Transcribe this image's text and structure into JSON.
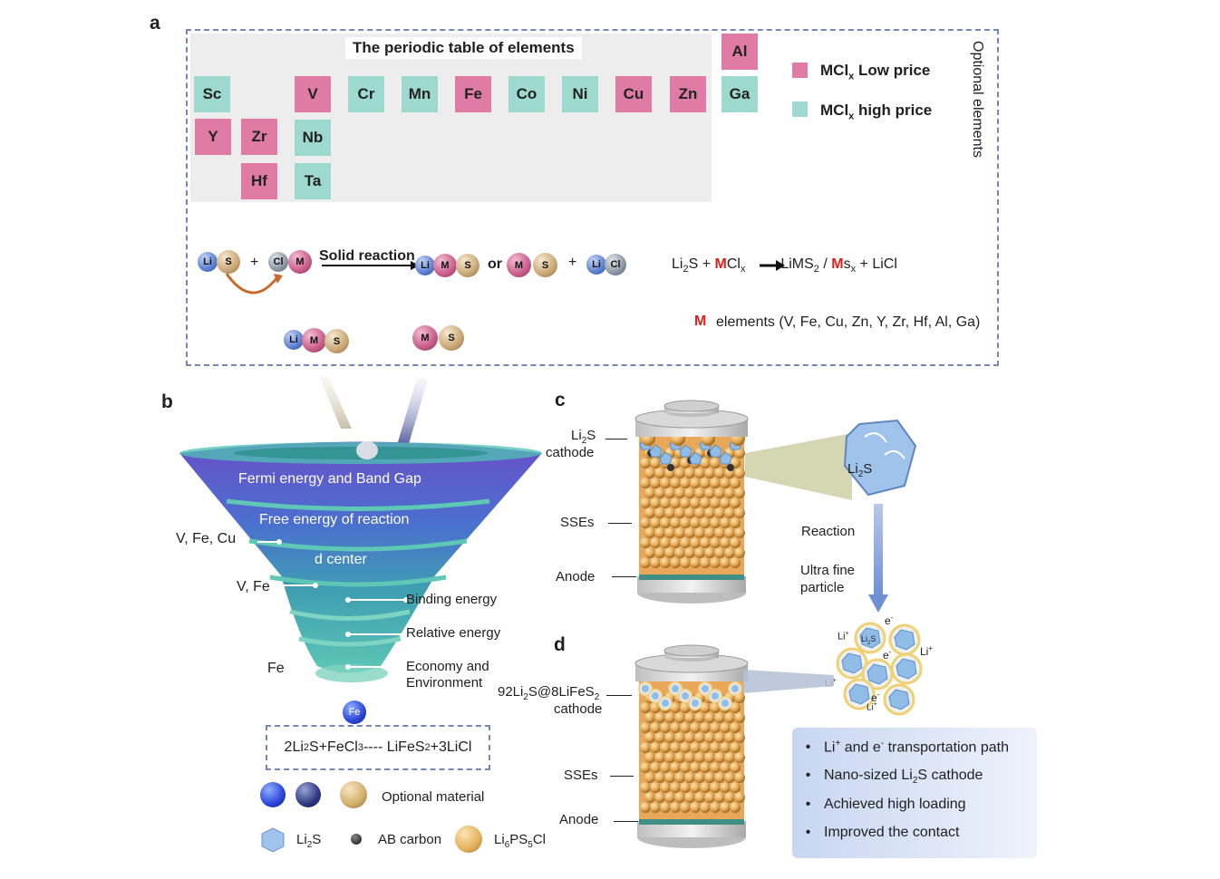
{
  "panels": {
    "a": "a",
    "b": "b",
    "c": "c",
    "d": "d"
  },
  "periodic_table": {
    "title": "The periodic table of elements",
    "elements": [
      "Sc",
      "V",
      "Cr",
      "Mn",
      "Fe",
      "Co",
      "Ni",
      "Cu",
      "Zn",
      "Al",
      "Ga",
      "Y",
      "Zr",
      "Nb",
      "Hf",
      "Ta"
    ],
    "low_price": [
      "V",
      "Fe",
      "Cu",
      "Zn",
      "Al",
      "Y",
      "Zr",
      "Hf"
    ],
    "high_price": [
      "Sc",
      "Cr",
      "Mn",
      "Co",
      "Ni",
      "Ga",
      "Nb",
      "Ta"
    ]
  },
  "legend": {
    "low": {
      "prefix": "MCl",
      "sub": "x",
      "suffix": " Low price",
      "color": "#e07ba6"
    },
    "high": {
      "prefix": "MCl",
      "sub": "x",
      "suffix": " high price",
      "color": "#9dd9cf"
    },
    "optional": "Optional elements"
  },
  "reaction": {
    "solid_reaction": "Solid reaction",
    "or": "or",
    "plus": "+",
    "balls": {
      "li": "Li",
      "s": "S",
      "cl": "Cl",
      "m": "M"
    },
    "equation": {
      "a": "Li",
      "a_sub": "2",
      "b": "S + ",
      "m1": "M",
      "c": "Cl",
      "c_sub": "x",
      "d": "LiMS",
      "d_sub": "2",
      "e": " / ",
      "m2": "M",
      "f": "s",
      "f_sub": "x",
      "g": " + LiCl"
    },
    "m_label": "M",
    "m_elements": "elements (V, Fe, Cu, Zn, Y, Zr, Hf, Al, Ga)"
  },
  "funnel": {
    "layers": [
      "Fermi energy and Band Gap",
      "Free energy of reaction",
      "d center"
    ],
    "left_labels": [
      "V, Fe, Cu",
      "V, Fe",
      "Fe"
    ],
    "right_labels": [
      "Binding energy",
      "Relative energy",
      "Economy and",
      "Environment"
    ],
    "fe_ball": "Fe"
  },
  "formula": {
    "p1": "2Li",
    "s1": "2",
    "p2": "S+FeCl",
    "s2": "3",
    "p3": " ---- LiFeS",
    "s3": "2",
    "p4": "+3LiCl"
  },
  "materials": {
    "optional": "Optional material",
    "li2s": {
      "p": "Li",
      "s": "2",
      "q": "S"
    },
    "ab_carbon": "AB carbon",
    "lpsc": {
      "p": "Li",
      "s": "6",
      "q": "PS",
      "s2": "5",
      "r": "Cl"
    }
  },
  "battery_c": {
    "cathode": {
      "p": "Li",
      "s": "2",
      "q": "S",
      "line2": "cathode"
    },
    "sses": "SSEs",
    "anode": "Anode",
    "crystal": {
      "p": "Li",
      "s": "2",
      "q": "S"
    },
    "reaction": "Reaction",
    "ultra1": "Ultra fine",
    "ultra2": "particle"
  },
  "battery_d": {
    "cathode": {
      "p": "92Li",
      "s": "2",
      "q": "S@8LiFeS",
      "s2": "2",
      "line2": "cathode"
    },
    "sses": "SSEs",
    "anode": "Anode",
    "particles": {
      "li": "Li",
      "plus": "+",
      "e": "e",
      "minus": "-",
      "li2s": "Li",
      "li2s_sub": "2",
      "li2s_q": "S"
    }
  },
  "info": {
    "item1": {
      "a": "Li",
      "a_sup": "+",
      "b": " and e",
      "b_sup": "-",
      "c": " transportation path"
    },
    "item2": {
      "a": "Nano-sized Li",
      "a_sub": "2",
      "b": "S cathode"
    },
    "item3": "Achieved high loading",
    "item4": "Improved the contact",
    "bullet": "•"
  }
}
